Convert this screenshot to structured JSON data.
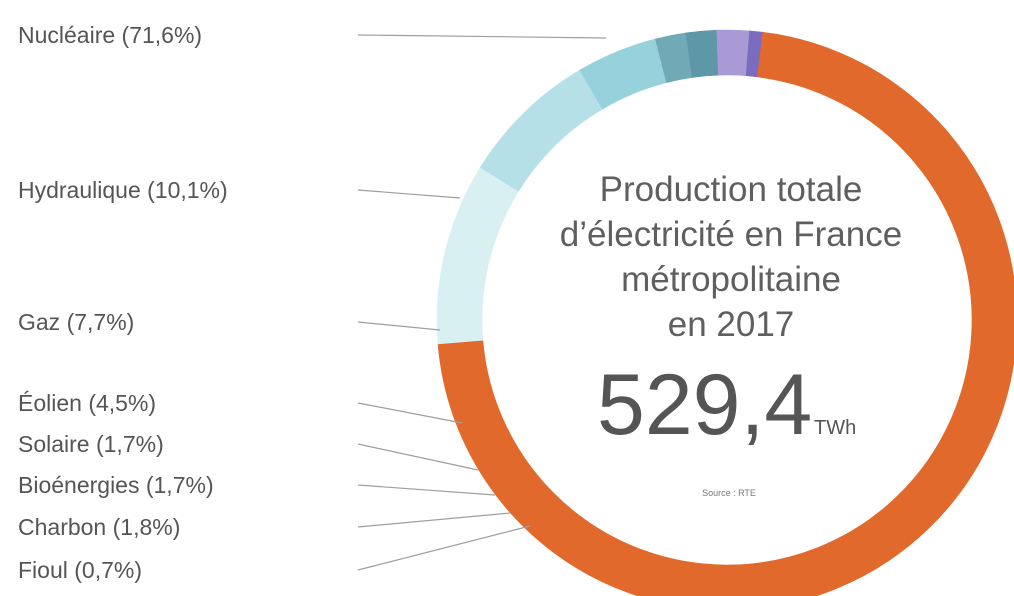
{
  "chart_data": {
    "type": "pie",
    "variant": "donut",
    "title_lines": [
      "Production totale",
      "d’électricité en France",
      "métropolitaine",
      "en 2017"
    ],
    "total_value": "529,4",
    "total_unit": "TWh",
    "source": "Source : RTE",
    "unit": "%",
    "legend_placement": "left",
    "slices": [
      {
        "label": "Nucléaire (71,6%)",
        "name": "Nucléaire",
        "value": 71.6,
        "color": "#e2692c"
      },
      {
        "label": "Hydraulique (10,1%)",
        "name": "Hydraulique",
        "value": 10.1,
        "color": "#d9f0f3"
      },
      {
        "label": "Gaz (7,7%)",
        "name": "Gaz",
        "value": 7.7,
        "color": "#b5e0e8"
      },
      {
        "label": "Éolien (4,5%)",
        "name": "Éolien",
        "value": 4.5,
        "color": "#96d1dc"
      },
      {
        "label": "Solaire (1,7%)",
        "name": "Solaire",
        "value": 1.7,
        "color": "#71a9b6"
      },
      {
        "label": "Bioénergies (1,7%)",
        "name": "Bioénergies",
        "value": 1.7,
        "color": "#5e97a5"
      },
      {
        "label": "Charbon (1,8%)",
        "name": "Charbon",
        "value": 1.8,
        "color": "#a99ad6"
      },
      {
        "label": "Fioul (0,7%)",
        "name": "Fioul",
        "value": 0.7,
        "color": "#7b6cc0"
      }
    ]
  }
}
